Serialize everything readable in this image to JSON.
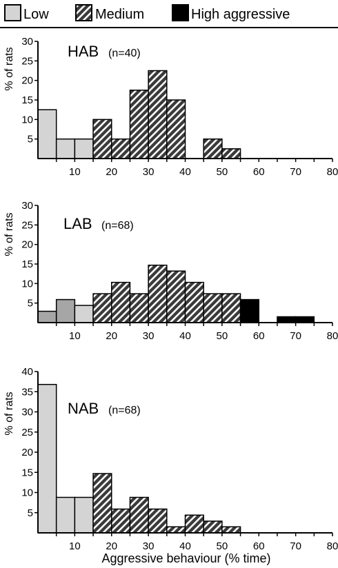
{
  "colors": {
    "low": "#d4d4d4",
    "low_lab": "#a6a6a6",
    "medium_stripe": "#ffffff",
    "medium_bg": "#3a3a3a",
    "high": "#000000",
    "axis": "#000000"
  },
  "legend": {
    "items": [
      {
        "key": "low",
        "label": "Low"
      },
      {
        "key": "medium",
        "label": "Medium"
      },
      {
        "key": "high",
        "label": "High aggressive"
      }
    ]
  },
  "chart_data": [
    {
      "type": "bar",
      "panel_label": "HAB",
      "n_label": "(n=40)",
      "ylabel": "% of rats",
      "xlabel": "",
      "xlim": [
        0,
        80
      ],
      "ylim": [
        0,
        30
      ],
      "yticks": [
        5,
        10,
        15,
        20,
        25,
        30
      ],
      "xticks": [
        10,
        20,
        30,
        40,
        50,
        60,
        70,
        80
      ],
      "bin_width": 5,
      "bars": [
        {
          "x": 0,
          "value": 12.5,
          "group": "low"
        },
        {
          "x": 5,
          "value": 5,
          "group": "low"
        },
        {
          "x": 10,
          "value": 5,
          "group": "low"
        },
        {
          "x": 15,
          "value": 10,
          "group": "medium"
        },
        {
          "x": 20,
          "value": 5,
          "group": "medium"
        },
        {
          "x": 25,
          "value": 17.5,
          "group": "medium"
        },
        {
          "x": 30,
          "value": 22.5,
          "group": "medium"
        },
        {
          "x": 35,
          "value": 15,
          "group": "medium"
        },
        {
          "x": 45,
          "value": 5,
          "group": "medium"
        },
        {
          "x": 50,
          "value": 2.5,
          "group": "medium"
        }
      ]
    },
    {
      "type": "bar",
      "panel_label": "LAB",
      "n_label": "(n=68)",
      "ylabel": "% of rats",
      "xlabel": "",
      "xlim": [
        0,
        80
      ],
      "ylim": [
        0,
        30
      ],
      "yticks": [
        5,
        10,
        15,
        20,
        25,
        30
      ],
      "xticks": [
        10,
        20,
        30,
        40,
        50,
        60,
        70,
        80
      ],
      "bin_width": 5,
      "bars": [
        {
          "x": 0,
          "value": 2.9,
          "group": "low"
        },
        {
          "x": 5,
          "value": 5.9,
          "group": "low"
        },
        {
          "x": 10,
          "value": 4.4,
          "group": "low"
        },
        {
          "x": 15,
          "value": 7.4,
          "group": "medium"
        },
        {
          "x": 20,
          "value": 10.3,
          "group": "medium"
        },
        {
          "x": 25,
          "value": 7.4,
          "group": "medium"
        },
        {
          "x": 30,
          "value": 14.7,
          "group": "medium"
        },
        {
          "x": 35,
          "value": 13.2,
          "group": "medium"
        },
        {
          "x": 40,
          "value": 10.3,
          "group": "medium"
        },
        {
          "x": 45,
          "value": 7.4,
          "group": "medium"
        },
        {
          "x": 50,
          "value": 7.4,
          "group": "medium"
        },
        {
          "x": 55,
          "value": 5.9,
          "group": "high"
        },
        {
          "x": 65,
          "value": 1.5,
          "group": "high"
        },
        {
          "x": 70,
          "value": 1.5,
          "group": "high"
        }
      ]
    },
    {
      "type": "bar",
      "panel_label": "NAB",
      "n_label": "(n=68)",
      "ylabel": "% of rats",
      "xlabel": "Aggressive behaviour (% time)",
      "xlim": [
        0,
        80
      ],
      "ylim": [
        0,
        40
      ],
      "yticks": [
        5,
        10,
        15,
        20,
        25,
        30,
        35,
        40
      ],
      "xticks": [
        10,
        20,
        30,
        40,
        50,
        60,
        70,
        80
      ],
      "bin_width": 5,
      "bars": [
        {
          "x": 0,
          "value": 36.8,
          "group": "low"
        },
        {
          "x": 5,
          "value": 8.8,
          "group": "low"
        },
        {
          "x": 10,
          "value": 8.8,
          "group": "low"
        },
        {
          "x": 15,
          "value": 14.7,
          "group": "medium"
        },
        {
          "x": 20,
          "value": 5.9,
          "group": "medium"
        },
        {
          "x": 25,
          "value": 8.8,
          "group": "medium"
        },
        {
          "x": 30,
          "value": 5.9,
          "group": "medium"
        },
        {
          "x": 35,
          "value": 1.5,
          "group": "medium"
        },
        {
          "x": 40,
          "value": 4.4,
          "group": "medium"
        },
        {
          "x": 45,
          "value": 2.9,
          "group": "medium"
        },
        {
          "x": 50,
          "value": 1.5,
          "group": "medium"
        }
      ]
    }
  ]
}
